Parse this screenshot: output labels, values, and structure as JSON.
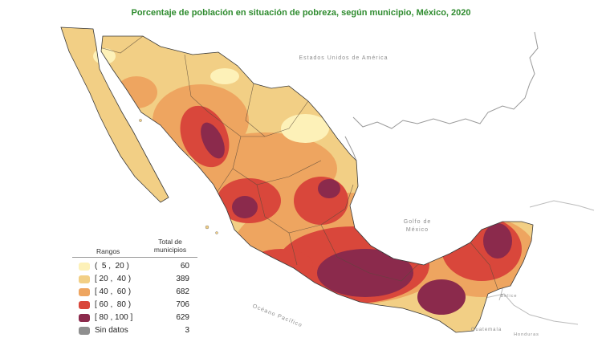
{
  "title": "Porcentaje de población en situación de pobreza, según municipio, México, 2020",
  "labels": {
    "usa": "Estados Unidos de América",
    "gulf_line1": "Golfo de",
    "gulf_line2": "México",
    "pacific": "Océano Pacífico",
    "guatemala": "Guatemala",
    "belice": "Belice",
    "honduras": "Honduras"
  },
  "legend": {
    "ranges_header": "Rangos",
    "total_header_line1": "Total de",
    "total_header_line2": "municipios",
    "items": [
      {
        "label": "(  5 ,  20 )",
        "count": "60",
        "color": "#fdf1b8"
      },
      {
        "label": "[ 20 ,  40 )",
        "count": "389",
        "color": "#f2cf85"
      },
      {
        "label": "[ 40 ,  60 )",
        "count": "682",
        "color": "#eea560"
      },
      {
        "label": "[ 60 ,  80 )",
        "count": "706",
        "color": "#d9473b"
      },
      {
        "label": "[ 80 , 100 ]",
        "count": "629",
        "color": "#8b2a4c"
      },
      {
        "label": "Sin datos",
        "count": "3",
        "color": "#8f8f8f"
      }
    ]
  }
}
